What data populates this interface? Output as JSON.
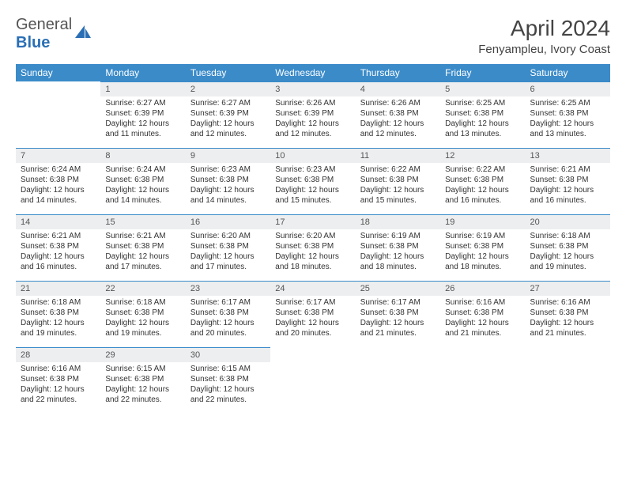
{
  "logo": {
    "text1": "General",
    "text2": "Blue"
  },
  "title": "April 2024",
  "location": "Fenyampleu, Ivory Coast",
  "dow": [
    "Sunday",
    "Monday",
    "Tuesday",
    "Wednesday",
    "Thursday",
    "Friday",
    "Saturday"
  ],
  "colors": {
    "header_bg": "#3b8bc9",
    "header_text": "#ffffff",
    "daynum_bg": "#eceeef",
    "daynum_border": "#3b8bc9",
    "logo_blue": "#2a6fb5"
  },
  "start_offset": 1,
  "days": [
    {
      "n": 1,
      "sr": "6:27 AM",
      "ss": "6:39 PM",
      "dl": "12 hours and 11 minutes."
    },
    {
      "n": 2,
      "sr": "6:27 AM",
      "ss": "6:39 PM",
      "dl": "12 hours and 12 minutes."
    },
    {
      "n": 3,
      "sr": "6:26 AM",
      "ss": "6:39 PM",
      "dl": "12 hours and 12 minutes."
    },
    {
      "n": 4,
      "sr": "6:26 AM",
      "ss": "6:38 PM",
      "dl": "12 hours and 12 minutes."
    },
    {
      "n": 5,
      "sr": "6:25 AM",
      "ss": "6:38 PM",
      "dl": "12 hours and 13 minutes."
    },
    {
      "n": 6,
      "sr": "6:25 AM",
      "ss": "6:38 PM",
      "dl": "12 hours and 13 minutes."
    },
    {
      "n": 7,
      "sr": "6:24 AM",
      "ss": "6:38 PM",
      "dl": "12 hours and 14 minutes."
    },
    {
      "n": 8,
      "sr": "6:24 AM",
      "ss": "6:38 PM",
      "dl": "12 hours and 14 minutes."
    },
    {
      "n": 9,
      "sr": "6:23 AM",
      "ss": "6:38 PM",
      "dl": "12 hours and 14 minutes."
    },
    {
      "n": 10,
      "sr": "6:23 AM",
      "ss": "6:38 PM",
      "dl": "12 hours and 15 minutes."
    },
    {
      "n": 11,
      "sr": "6:22 AM",
      "ss": "6:38 PM",
      "dl": "12 hours and 15 minutes."
    },
    {
      "n": 12,
      "sr": "6:22 AM",
      "ss": "6:38 PM",
      "dl": "12 hours and 16 minutes."
    },
    {
      "n": 13,
      "sr": "6:21 AM",
      "ss": "6:38 PM",
      "dl": "12 hours and 16 minutes."
    },
    {
      "n": 14,
      "sr": "6:21 AM",
      "ss": "6:38 PM",
      "dl": "12 hours and 16 minutes."
    },
    {
      "n": 15,
      "sr": "6:21 AM",
      "ss": "6:38 PM",
      "dl": "12 hours and 17 minutes."
    },
    {
      "n": 16,
      "sr": "6:20 AM",
      "ss": "6:38 PM",
      "dl": "12 hours and 17 minutes."
    },
    {
      "n": 17,
      "sr": "6:20 AM",
      "ss": "6:38 PM",
      "dl": "12 hours and 18 minutes."
    },
    {
      "n": 18,
      "sr": "6:19 AM",
      "ss": "6:38 PM",
      "dl": "12 hours and 18 minutes."
    },
    {
      "n": 19,
      "sr": "6:19 AM",
      "ss": "6:38 PM",
      "dl": "12 hours and 18 minutes."
    },
    {
      "n": 20,
      "sr": "6:18 AM",
      "ss": "6:38 PM",
      "dl": "12 hours and 19 minutes."
    },
    {
      "n": 21,
      "sr": "6:18 AM",
      "ss": "6:38 PM",
      "dl": "12 hours and 19 minutes."
    },
    {
      "n": 22,
      "sr": "6:18 AM",
      "ss": "6:38 PM",
      "dl": "12 hours and 19 minutes."
    },
    {
      "n": 23,
      "sr": "6:17 AM",
      "ss": "6:38 PM",
      "dl": "12 hours and 20 minutes."
    },
    {
      "n": 24,
      "sr": "6:17 AM",
      "ss": "6:38 PM",
      "dl": "12 hours and 20 minutes."
    },
    {
      "n": 25,
      "sr": "6:17 AM",
      "ss": "6:38 PM",
      "dl": "12 hours and 21 minutes."
    },
    {
      "n": 26,
      "sr": "6:16 AM",
      "ss": "6:38 PM",
      "dl": "12 hours and 21 minutes."
    },
    {
      "n": 27,
      "sr": "6:16 AM",
      "ss": "6:38 PM",
      "dl": "12 hours and 21 minutes."
    },
    {
      "n": 28,
      "sr": "6:16 AM",
      "ss": "6:38 PM",
      "dl": "12 hours and 22 minutes."
    },
    {
      "n": 29,
      "sr": "6:15 AM",
      "ss": "6:38 PM",
      "dl": "12 hours and 22 minutes."
    },
    {
      "n": 30,
      "sr": "6:15 AM",
      "ss": "6:38 PM",
      "dl": "12 hours and 22 minutes."
    }
  ],
  "labels": {
    "sunrise": "Sunrise:",
    "sunset": "Sunset:",
    "daylight": "Daylight:"
  }
}
